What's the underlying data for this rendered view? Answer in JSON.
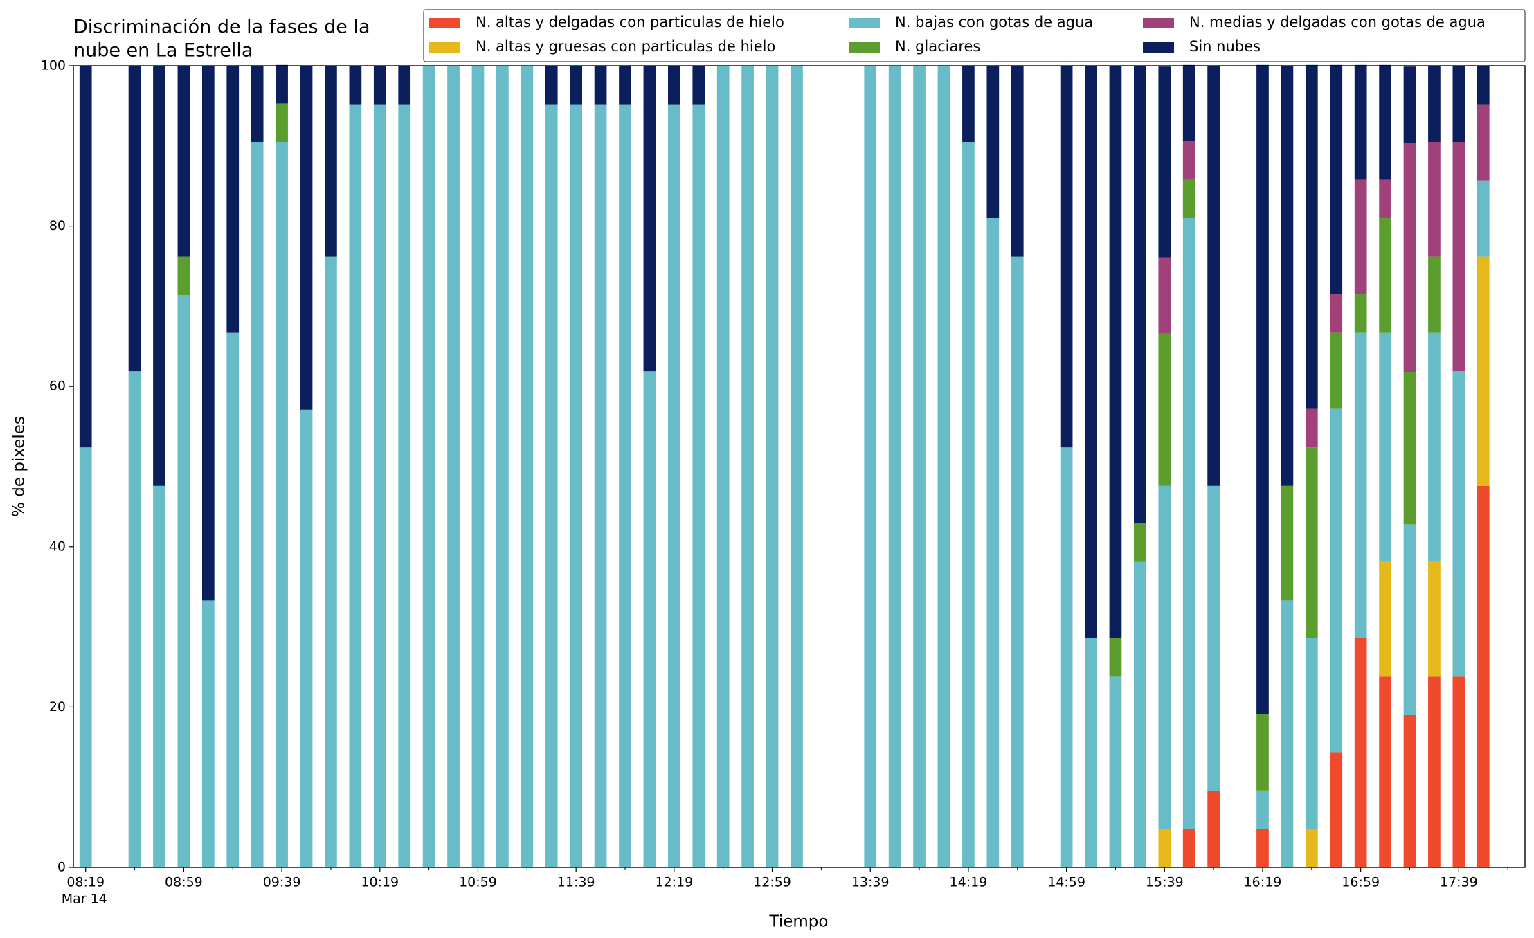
{
  "chart_data": {
    "type": "stacked_bar",
    "title": [
      "Discriminación de la fases de la",
      "nube en La Estrella"
    ],
    "xlabel": "Tiempo",
    "ylabel": "% de pixeles",
    "date_label": "Mar 14",
    "x": [
      "08:19",
      "08:29",
      "08:39",
      "08:49",
      "08:59",
      "09:09",
      "09:19",
      "09:29",
      "09:39",
      "09:49",
      "09:59",
      "10:09",
      "10:19",
      "10:29",
      "10:39",
      "10:49",
      "10:59",
      "11:09",
      "11:19",
      "11:29",
      "11:39",
      "11:49",
      "11:59",
      "12:09",
      "12:19",
      "12:29",
      "12:39",
      "12:49",
      "12:59",
      "13:09",
      "13:19",
      "13:29",
      "13:39",
      "13:49",
      "13:59",
      "14:09",
      "14:19",
      "14:29",
      "14:39",
      "14:49",
      "14:59",
      "15:09",
      "15:19",
      "15:29",
      "15:39",
      "15:49",
      "15:59",
      "16:09",
      "16:19",
      "16:29",
      "16:39",
      "16:49",
      "16:59",
      "17:09",
      "17:19",
      "17:29",
      "17:39",
      "17:49"
    ],
    "xlim": [
      "08:14",
      "18:06"
    ],
    "xticks": [
      "08:19",
      "08:59",
      "09:39",
      "10:19",
      "10:59",
      "11:39",
      "12:19",
      "12:59",
      "13:39",
      "14:19",
      "14:59",
      "15:39",
      "16:19",
      "16:59",
      "17:39"
    ],
    "ylim": [
      0,
      100
    ],
    "yticks": [
      0,
      20,
      40,
      60,
      80,
      100
    ],
    "grid": false,
    "legend": "top-right",
    "series": [
      {
        "name": "N. altas y delgadas con particulas de hielo",
        "color": "#ee4a2b",
        "values": [
          0,
          null,
          0,
          0,
          0,
          0,
          0,
          0,
          0,
          0,
          0,
          0,
          0,
          0,
          0,
          0,
          0,
          0,
          0,
          0,
          0,
          0,
          0,
          0,
          0,
          0,
          0,
          0,
          0,
          0,
          null,
          null,
          0,
          0,
          0,
          0,
          0,
          0,
          0,
          null,
          0,
          0,
          0,
          0,
          0,
          4.8,
          9.5,
          null,
          4.8,
          0,
          0,
          14.3,
          28.6,
          23.8,
          19.0,
          23.8,
          23.8,
          47.6
        ]
      },
      {
        "name": "N. altas y gruesas con particulas de hielo",
        "color": "#e6b81a",
        "values": [
          0,
          null,
          0,
          0,
          0,
          0,
          0,
          0,
          0,
          0,
          0,
          0,
          0,
          0,
          0,
          0,
          0,
          0,
          0,
          0,
          0,
          0,
          0,
          0,
          0,
          0,
          0,
          0,
          0,
          0,
          null,
          null,
          0,
          0,
          0,
          0,
          0,
          0,
          0,
          null,
          0,
          0,
          0,
          0,
          4.8,
          0,
          0,
          null,
          0,
          0,
          4.8,
          0,
          0,
          14.3,
          0,
          14.3,
          0,
          28.6
        ]
      },
      {
        "name": "N. bajas con gotas de agua",
        "color": "#67bcc8",
        "values": [
          52.4,
          null,
          61.9,
          47.6,
          71.4,
          33.3,
          66.7,
          90.5,
          90.5,
          57.1,
          76.2,
          95.2,
          95.2,
          95.2,
          100,
          100,
          100,
          100,
          100,
          95.2,
          95.2,
          95.2,
          95.2,
          61.9,
          95.2,
          95.2,
          100,
          100,
          100,
          100,
          null,
          null,
          100,
          100,
          100,
          100,
          90.5,
          81.0,
          76.2,
          null,
          52.4,
          28.6,
          23.8,
          38.1,
          42.8,
          76.2,
          38.1,
          null,
          4.8,
          33.3,
          23.8,
          42.9,
          38.1,
          28.6,
          23.8,
          28.6,
          38.1,
          9.5
        ]
      },
      {
        "name": "N. glaciares",
        "color": "#5c9e2e",
        "values": [
          0,
          null,
          0,
          0,
          4.8,
          0,
          0,
          0,
          4.8,
          0,
          0,
          0,
          0,
          0,
          0,
          0,
          0,
          0,
          0,
          0,
          0,
          0,
          0,
          0,
          0,
          0,
          0,
          0,
          0,
          0,
          null,
          null,
          0,
          0,
          0,
          0,
          0,
          0,
          0,
          null,
          0,
          0,
          4.8,
          4.8,
          19.0,
          4.8,
          0,
          null,
          9.5,
          14.3,
          23.8,
          9.5,
          4.8,
          14.3,
          19.0,
          9.5,
          0,
          0
        ]
      },
      {
        "name": "N. medias y delgadas con gotas de agua",
        "color": "#a0417a",
        "values": [
          0,
          null,
          0,
          0,
          0,
          0,
          0,
          0,
          0,
          0,
          0,
          0,
          0,
          0,
          0,
          0,
          0,
          0,
          0,
          0,
          0,
          0,
          0,
          0,
          0,
          0,
          0,
          0,
          0,
          0,
          null,
          null,
          0,
          0,
          0,
          0,
          0,
          0,
          0,
          null,
          0,
          0,
          0,
          0,
          9.5,
          4.8,
          0,
          null,
          0,
          0,
          4.8,
          4.8,
          14.3,
          4.8,
          28.6,
          14.3,
          28.6,
          9.5
        ]
      },
      {
        "name": "Sin nubes",
        "color": "#0a1f5c",
        "values": [
          47.6,
          null,
          38.1,
          52.4,
          23.8,
          66.7,
          33.3,
          9.5,
          4.8,
          42.9,
          23.8,
          4.8,
          4.8,
          4.8,
          0,
          0,
          0,
          0,
          0,
          4.8,
          4.8,
          4.8,
          4.8,
          38.1,
          4.8,
          4.8,
          0,
          0,
          0,
          0,
          null,
          null,
          0,
          0,
          0,
          0,
          9.5,
          19.0,
          23.8,
          null,
          47.6,
          71.4,
          71.4,
          57.1,
          23.8,
          9.5,
          52.4,
          null,
          81.0,
          52.4,
          42.9,
          28.6,
          14.3,
          14.3,
          9.5,
          9.5,
          9.5,
          4.8
        ]
      }
    ]
  }
}
